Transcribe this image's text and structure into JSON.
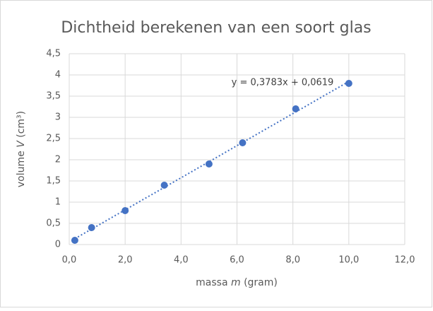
{
  "chart_data": {
    "type": "scatter",
    "title": "Dichtheid berekenen van een soort glas",
    "x_label": {
      "pre": "massa ",
      "var": "m",
      "post": " (gram)"
    },
    "y_label": {
      "pre": "volume ",
      "var": "V",
      "post": " (cm³)"
    },
    "x": [
      0.2,
      0.8,
      2.0,
      3.4,
      5.0,
      6.2,
      8.1,
      10.0
    ],
    "values": [
      0.1,
      0.4,
      0.8,
      1.4,
      1.9,
      2.4,
      3.2,
      3.8
    ],
    "color": "#4472c4",
    "xlim": [
      0,
      12
    ],
    "xticks": [
      {
        "value": 0,
        "label": "0,0"
      },
      {
        "value": 2,
        "label": "2,0"
      },
      {
        "value": 4,
        "label": "4,0"
      },
      {
        "value": 6,
        "label": "6,0"
      },
      {
        "value": 8,
        "label": "8,0"
      },
      {
        "value": 10,
        "label": "10,0"
      },
      {
        "value": 12,
        "label": "12,0"
      }
    ],
    "ylim": [
      0,
      4.5
    ],
    "yticks": [
      0,
      {
        "value": 0.5,
        "label": "0,5"
      },
      1,
      {
        "value": 1.5,
        "label": "1,5"
      },
      2,
      {
        "value": 2.5,
        "label": "2,5"
      },
      3,
      {
        "value": 3.5,
        "label": "3,5"
      },
      4,
      {
        "value": 4.5,
        "label": "4,5"
      }
    ],
    "grid": true,
    "trendline": {
      "slope": 0.3783,
      "intercept": 0.0619,
      "label": "y = 0,3783x + 0,0619"
    }
  }
}
